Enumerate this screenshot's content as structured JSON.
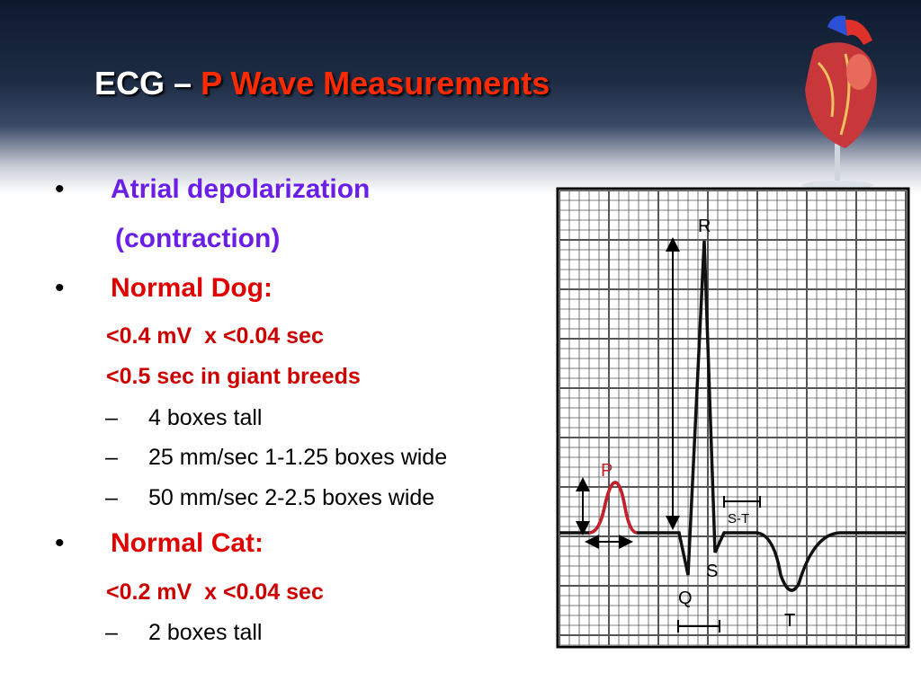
{
  "title": {
    "prefix": "ECG –",
    "highlight": "P Wave Measurements"
  },
  "bullets": [
    "Atrial depolarization",
    "(contraction)",
    "Normal Dog:",
    "<0.4 mV  x <0.04 sec",
    "<0.5 sec in giant breeds",
    "4 boxes tall",
    "25 mm/sec 1-1.25 boxes wide",
    "50 mm/sec 2-2.5 boxes wide",
    "Normal Cat:",
    "<0.2 mV  x <0.04 sec",
    "2 boxes tall"
  ],
  "diagram": {
    "labels": [
      "P",
      "R",
      "Q",
      "S",
      "T",
      "S-T"
    ]
  }
}
